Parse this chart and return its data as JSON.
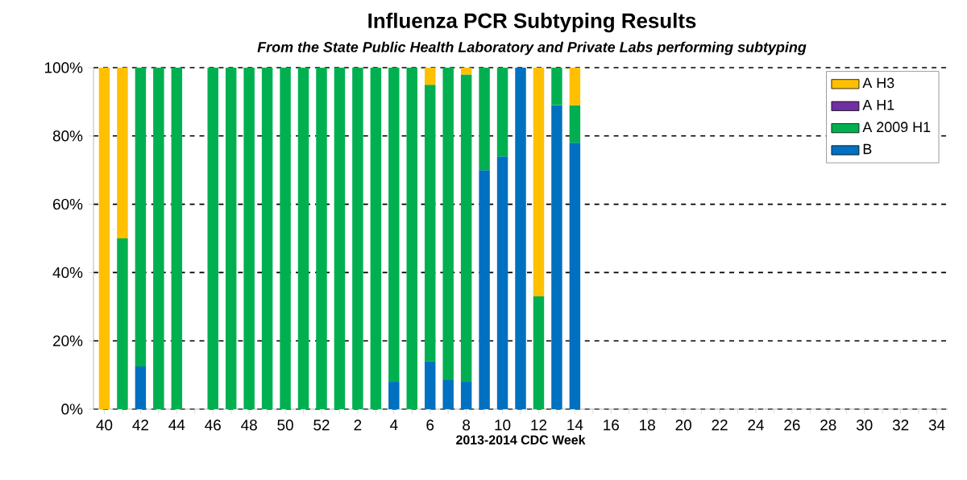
{
  "chart_data": {
    "type": "bar",
    "stacked": true,
    "title": "Influenza PCR Subtyping Results",
    "subtitle": "From the State Public Health Laboratory and Private Labs performing subtyping",
    "xlabel": "2013-2014 CDC Week",
    "categories": [
      "40",
      null,
      "42",
      null,
      "44",
      null,
      "46",
      null,
      "48",
      null,
      "50",
      null,
      "52",
      null,
      "2",
      null,
      "4",
      null,
      "6",
      null,
      "8",
      null,
      "10",
      null,
      "12",
      null,
      "14",
      null,
      "16",
      null,
      "18",
      null,
      "20",
      null,
      "22",
      null,
      "24",
      null,
      "26",
      null,
      "28",
      null,
      "30",
      null,
      "32",
      null,
      "34"
    ],
    "series": [
      {
        "name": "B",
        "color": "#0070c0",
        "values": [
          null,
          null,
          12.5,
          null,
          null,
          null,
          null,
          null,
          null,
          null,
          null,
          null,
          null,
          null,
          null,
          null,
          8,
          null,
          14,
          8.5,
          8,
          70,
          74,
          100,
          null,
          89,
          78,
          null,
          null,
          null,
          null,
          null,
          null,
          null,
          null,
          null,
          null,
          null,
          null,
          null,
          null,
          null,
          null,
          null,
          null,
          null,
          null
        ]
      },
      {
        "name": "A 2009 H1",
        "color": "#00b050",
        "values": [
          null,
          50,
          87.5,
          100,
          100,
          null,
          100,
          100,
          100,
          100,
          100,
          100,
          100,
          100,
          100,
          100,
          92,
          100,
          81,
          91.5,
          90,
          30,
          26,
          null,
          33,
          11,
          11,
          null,
          null,
          null,
          null,
          null,
          null,
          null,
          null,
          null,
          null,
          null,
          null,
          null,
          null,
          null,
          null,
          null,
          null,
          null,
          null
        ]
      },
      {
        "name": "A H1",
        "color": "#7030a0",
        "values": [
          null,
          null,
          null,
          null,
          null,
          null,
          null,
          null,
          null,
          null,
          null,
          null,
          null,
          null,
          null,
          null,
          null,
          null,
          null,
          null,
          null,
          null,
          null,
          null,
          null,
          null,
          null,
          null,
          null,
          null,
          null,
          null,
          null,
          null,
          null,
          null,
          null,
          null,
          null,
          null,
          null,
          null,
          null,
          null,
          null,
          null,
          null
        ]
      },
      {
        "name": "A H3",
        "color": "#ffc000",
        "values": [
          100,
          50,
          null,
          null,
          null,
          null,
          null,
          null,
          null,
          null,
          null,
          null,
          null,
          null,
          null,
          null,
          null,
          null,
          5,
          null,
          2,
          null,
          null,
          null,
          67,
          null,
          11,
          null,
          null,
          null,
          null,
          null,
          null,
          null,
          null,
          null,
          null,
          null,
          null,
          null,
          null,
          null,
          null,
          null,
          null,
          null,
          null
        ]
      }
    ],
    "ylim": [
      0,
      100
    ],
    "yticks": [
      {
        "value": 0,
        "label": "0%"
      },
      {
        "value": 20,
        "label": "20%"
      },
      {
        "value": 40,
        "label": "40%"
      },
      {
        "value": 60,
        "label": "60%"
      },
      {
        "value": 80,
        "label": "80%"
      },
      {
        "value": 100,
        "label": "100%"
      }
    ],
    "grid": "y",
    "legend": "top right"
  }
}
